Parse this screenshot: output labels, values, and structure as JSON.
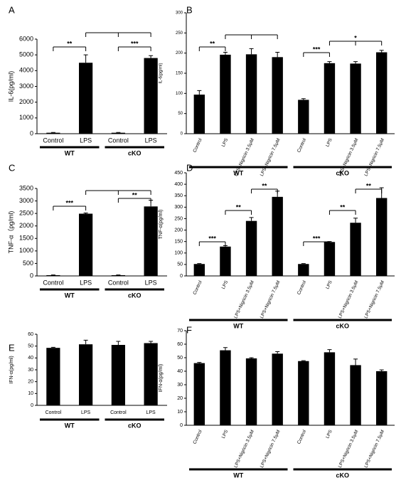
{
  "chart_data": [
    {
      "type": "bar",
      "label": "A",
      "y_label": "IL-6(pg/ml)",
      "categories": [
        "Control",
        "LPS",
        "Control",
        "LPS"
      ],
      "groups": [
        "WT",
        "cKO"
      ],
      "values": [
        60,
        4500,
        60,
        4800
      ],
      "errors": [
        20,
        500,
        20,
        150
      ],
      "color": "#000000",
      "ylim": [
        0,
        6000
      ],
      "yticks": [
        0,
        1000,
        2000,
        3000,
        4000,
        5000,
        6000
      ],
      "annotations": [
        "**",
        "***"
      ]
    },
    {
      "type": "bar",
      "label": "B",
      "y_label": "IL-6(pg/ml)",
      "categories": [
        "Control",
        "LPS",
        "LPS+Nigricin 3.5μM",
        "LPS+Nigricin 7.5μM",
        "Control",
        "LPS",
        "LPS+Nigricin 3.5μM",
        "LPS+Nigricin 7.5μM"
      ],
      "groups": [
        "WT",
        "cKO"
      ],
      "values": [
        97,
        196,
        197,
        190,
        84,
        175,
        174,
        202
      ],
      "errors": [
        10,
        6,
        14,
        12,
        3,
        4,
        5,
        5
      ],
      "color": "#000000",
      "ylim": [
        0,
        300
      ],
      "yticks": [
        0,
        50,
        100,
        150,
        200,
        250,
        300
      ],
      "annotations": [
        "**",
        "***",
        "*"
      ]
    },
    {
      "type": "bar",
      "label": "C",
      "y_label": "TNF-α（pg/ml)",
      "categories": [
        "Control",
        "LPS",
        "Control",
        "LPS"
      ],
      "groups": [
        "WT",
        "cKO"
      ],
      "values": [
        30,
        2490,
        30,
        2780
      ],
      "errors": [
        10,
        30,
        10,
        250
      ],
      "color": "#000000",
      "ylim": [
        0,
        3500
      ],
      "yticks": [
        0,
        500,
        1000,
        1500,
        2000,
        2500,
        3000,
        3500
      ],
      "annotations": [
        "***",
        "**"
      ]
    },
    {
      "type": "bar",
      "label": "D",
      "y_label": "TNF-α(pg/ml)",
      "categories": [
        "Control",
        "LPS",
        "LPS+Nigricin 3.5μM",
        "LPS+Nigricin 7.5μM",
        "Control",
        "LPS",
        "LPS+Nigricin 3.5μM",
        "LPS+Nigricin 7.5μM"
      ],
      "groups": [
        "WT",
        "cKO"
      ],
      "values": [
        52,
        128,
        240,
        345,
        52,
        148,
        232,
        340
      ],
      "errors": [
        2,
        4,
        15,
        25,
        2,
        2,
        20,
        45
      ],
      "color": "#000000",
      "ylim": [
        0,
        450
      ],
      "yticks": [
        0,
        50,
        100,
        150,
        200,
        250,
        300,
        350,
        400,
        450
      ],
      "annotations": [
        "***",
        "**",
        "**",
        "***",
        "**",
        "**"
      ]
    },
    {
      "type": "bar",
      "label": "E",
      "y_label": "IFN-α(pg/ml)",
      "categories": [
        "Control",
        "LPS",
        "Control",
        "LPS"
      ],
      "groups": [
        "WT",
        "cKO"
      ],
      "values": [
        48.5,
        51.5,
        51,
        52.5
      ],
      "errors": [
        0.5,
        3.5,
        3,
        1.5
      ],
      "color": "#000000",
      "ylim": [
        0,
        60
      ],
      "yticks": [
        0,
        10,
        20,
        30,
        40,
        50,
        60
      ]
    },
    {
      "type": "bar",
      "label": "F",
      "y_label": "IFN-α(pg/ml)",
      "categories": [
        "Control",
        "LPS",
        "LPS+Nigricin 3.5μM",
        "LPS+Nigricin 7.5μM",
        "Control",
        "LPS",
        "LPS+Nigricin 3.5μM",
        "LPS+Nigricin 7.5μM"
      ],
      "groups": [
        "WT",
        "cKO"
      ],
      "values": [
        46,
        55.5,
        49.5,
        53,
        47.5,
        54,
        44.5,
        40
      ],
      "errors": [
        0.5,
        2,
        0.5,
        1.5,
        0.3,
        2,
        4.5,
        1
      ],
      "color": "#000000",
      "ylim": [
        0,
        70
      ],
      "yticks": [
        0,
        10,
        20,
        30,
        40,
        50,
        60,
        70
      ]
    }
  ]
}
